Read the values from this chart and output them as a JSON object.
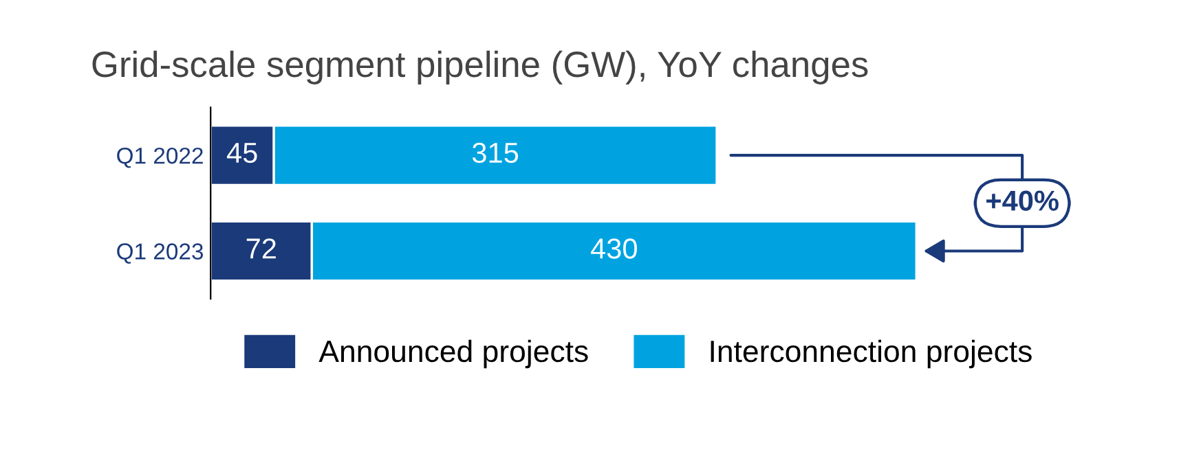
{
  "chart_data": {
    "type": "bar",
    "orientation": "horizontal",
    "stacked": true,
    "title": "Grid-scale segment pipeline (GW), YoY changes",
    "categories": [
      "Q1 2022",
      "Q1 2023"
    ],
    "series": [
      {
        "name": "Announced projects",
        "color": "#1b3a7a",
        "values": [
          45,
          72
        ]
      },
      {
        "name": "Interconnection projects",
        "color": "#00a3e0",
        "values": [
          315,
          430
        ]
      }
    ],
    "data_labels": true,
    "legend": "bottom",
    "tick_labels": "y",
    "grid": false,
    "annotations": [
      "+40%"
    ]
  }
}
